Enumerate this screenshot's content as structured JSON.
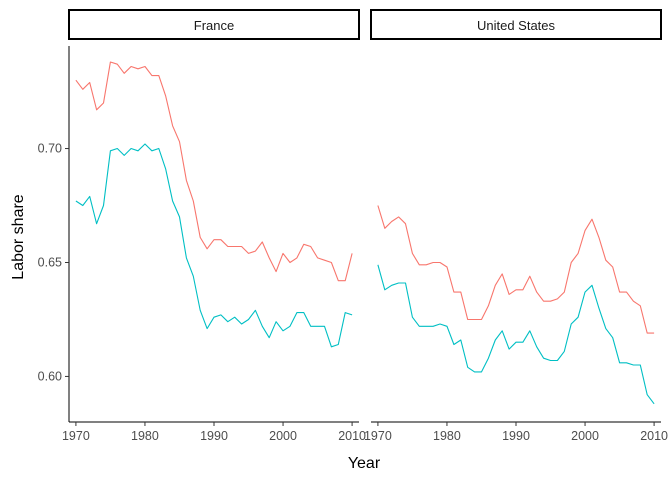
{
  "chart_data": {
    "type": "line",
    "title": "",
    "xlabel": "Year",
    "ylabel": "Labor share",
    "xlim": [
      1969,
      2011
    ],
    "ylim": [
      0.58,
      0.745
    ],
    "x_ticks": [
      1970,
      1980,
      1990,
      2000,
      2010
    ],
    "x_tick_labels": [
      "1970",
      "1980",
      "1990",
      "2000",
      "2010"
    ],
    "y_ticks": [
      0.6,
      0.65,
      0.7
    ],
    "y_tick_labels": [
      "0.60",
      "0.65",
      "0.70"
    ],
    "grid": false,
    "legend": "none",
    "panels": [
      {
        "label": "France",
        "series": [
          {
            "color": "#F8766D",
            "x": [
              1970,
              1971,
              1972,
              1973,
              1974,
              1975,
              1976,
              1977,
              1978,
              1979,
              1980,
              1981,
              1982,
              1983,
              1984,
              1985,
              1986,
              1987,
              1988,
              1989,
              1990,
              1991,
              1992,
              1993,
              1994,
              1995,
              1996,
              1997,
              1998,
              1999,
              2000,
              2001,
              2002,
              2003,
              2004,
              2005,
              2006,
              2007,
              2008,
              2009,
              2010
            ],
            "y": [
              0.73,
              0.726,
              0.729,
              0.717,
              0.72,
              0.738,
              0.737,
              0.733,
              0.736,
              0.735,
              0.736,
              0.732,
              0.732,
              0.723,
              0.71,
              0.703,
              0.686,
              0.677,
              0.661,
              0.656,
              0.66,
              0.66,
              0.657,
              0.657,
              0.657,
              0.654,
              0.655,
              0.659,
              0.652,
              0.646,
              0.654,
              0.65,
              0.652,
              0.658,
              0.657,
              0.652,
              0.651,
              0.65,
              0.642,
              0.642,
              0.654
            ]
          },
          {
            "color": "#00BFC4",
            "x": [
              1970,
              1971,
              1972,
              1973,
              1974,
              1975,
              1976,
              1977,
              1978,
              1979,
              1980,
              1981,
              1982,
              1983,
              1984,
              1985,
              1986,
              1987,
              1988,
              1989,
              1990,
              1991,
              1992,
              1993,
              1994,
              1995,
              1996,
              1997,
              1998,
              1999,
              2000,
              2001,
              2002,
              2003,
              2004,
              2005,
              2006,
              2007,
              2008,
              2009,
              2010
            ],
            "y": [
              0.677,
              0.675,
              0.679,
              0.667,
              0.675,
              0.699,
              0.7,
              0.697,
              0.7,
              0.699,
              0.702,
              0.699,
              0.7,
              0.691,
              0.677,
              0.67,
              0.652,
              0.644,
              0.629,
              0.621,
              0.626,
              0.627,
              0.624,
              0.626,
              0.623,
              0.625,
              0.629,
              0.622,
              0.617,
              0.624,
              0.62,
              0.622,
              0.628,
              0.628,
              0.622,
              0.622,
              0.622,
              0.613,
              0.614,
              0.628,
              0.627
            ]
          }
        ]
      },
      {
        "label": "United States",
        "series": [
          {
            "color": "#F8766D",
            "x": [
              1970,
              1971,
              1972,
              1973,
              1974,
              1975,
              1976,
              1977,
              1978,
              1979,
              1980,
              1981,
              1982,
              1983,
              1984,
              1985,
              1986,
              1987,
              1988,
              1989,
              1990,
              1991,
              1992,
              1993,
              1994,
              1995,
              1996,
              1997,
              1998,
              1999,
              2000,
              2001,
              2002,
              2003,
              2004,
              2005,
              2006,
              2007,
              2008,
              2009,
              2010
            ],
            "y": [
              0.675,
              0.665,
              0.668,
              0.67,
              0.667,
              0.654,
              0.649,
              0.649,
              0.65,
              0.65,
              0.648,
              0.637,
              0.637,
              0.625,
              0.625,
              0.625,
              0.631,
              0.64,
              0.645,
              0.636,
              0.638,
              0.638,
              0.644,
              0.637,
              0.633,
              0.633,
              0.634,
              0.637,
              0.65,
              0.654,
              0.664,
              0.669,
              0.661,
              0.651,
              0.648,
              0.637,
              0.637,
              0.633,
              0.631,
              0.619,
              0.619
            ]
          },
          {
            "color": "#00BFC4",
            "x": [
              1970,
              1971,
              1972,
              1973,
              1974,
              1975,
              1976,
              1977,
              1978,
              1979,
              1980,
              1981,
              1982,
              1983,
              1984,
              1985,
              1986,
              1987,
              1988,
              1989,
              1990,
              1991,
              1992,
              1993,
              1994,
              1995,
              1996,
              1997,
              1998,
              1999,
              2000,
              2001,
              2002,
              2003,
              2004,
              2005,
              2006,
              2007,
              2008,
              2009,
              2010
            ],
            "y": [
              0.649,
              0.638,
              0.64,
              0.641,
              0.641,
              0.626,
              0.622,
              0.622,
              0.622,
              0.623,
              0.622,
              0.614,
              0.616,
              0.604,
              0.602,
              0.602,
              0.608,
              0.616,
              0.62,
              0.612,
              0.615,
              0.615,
              0.62,
              0.613,
              0.608,
              0.607,
              0.607,
              0.611,
              0.623,
              0.626,
              0.637,
              0.64,
              0.63,
              0.621,
              0.617,
              0.606,
              0.606,
              0.605,
              0.605,
              0.592,
              0.588
            ]
          }
        ]
      }
    ]
  }
}
